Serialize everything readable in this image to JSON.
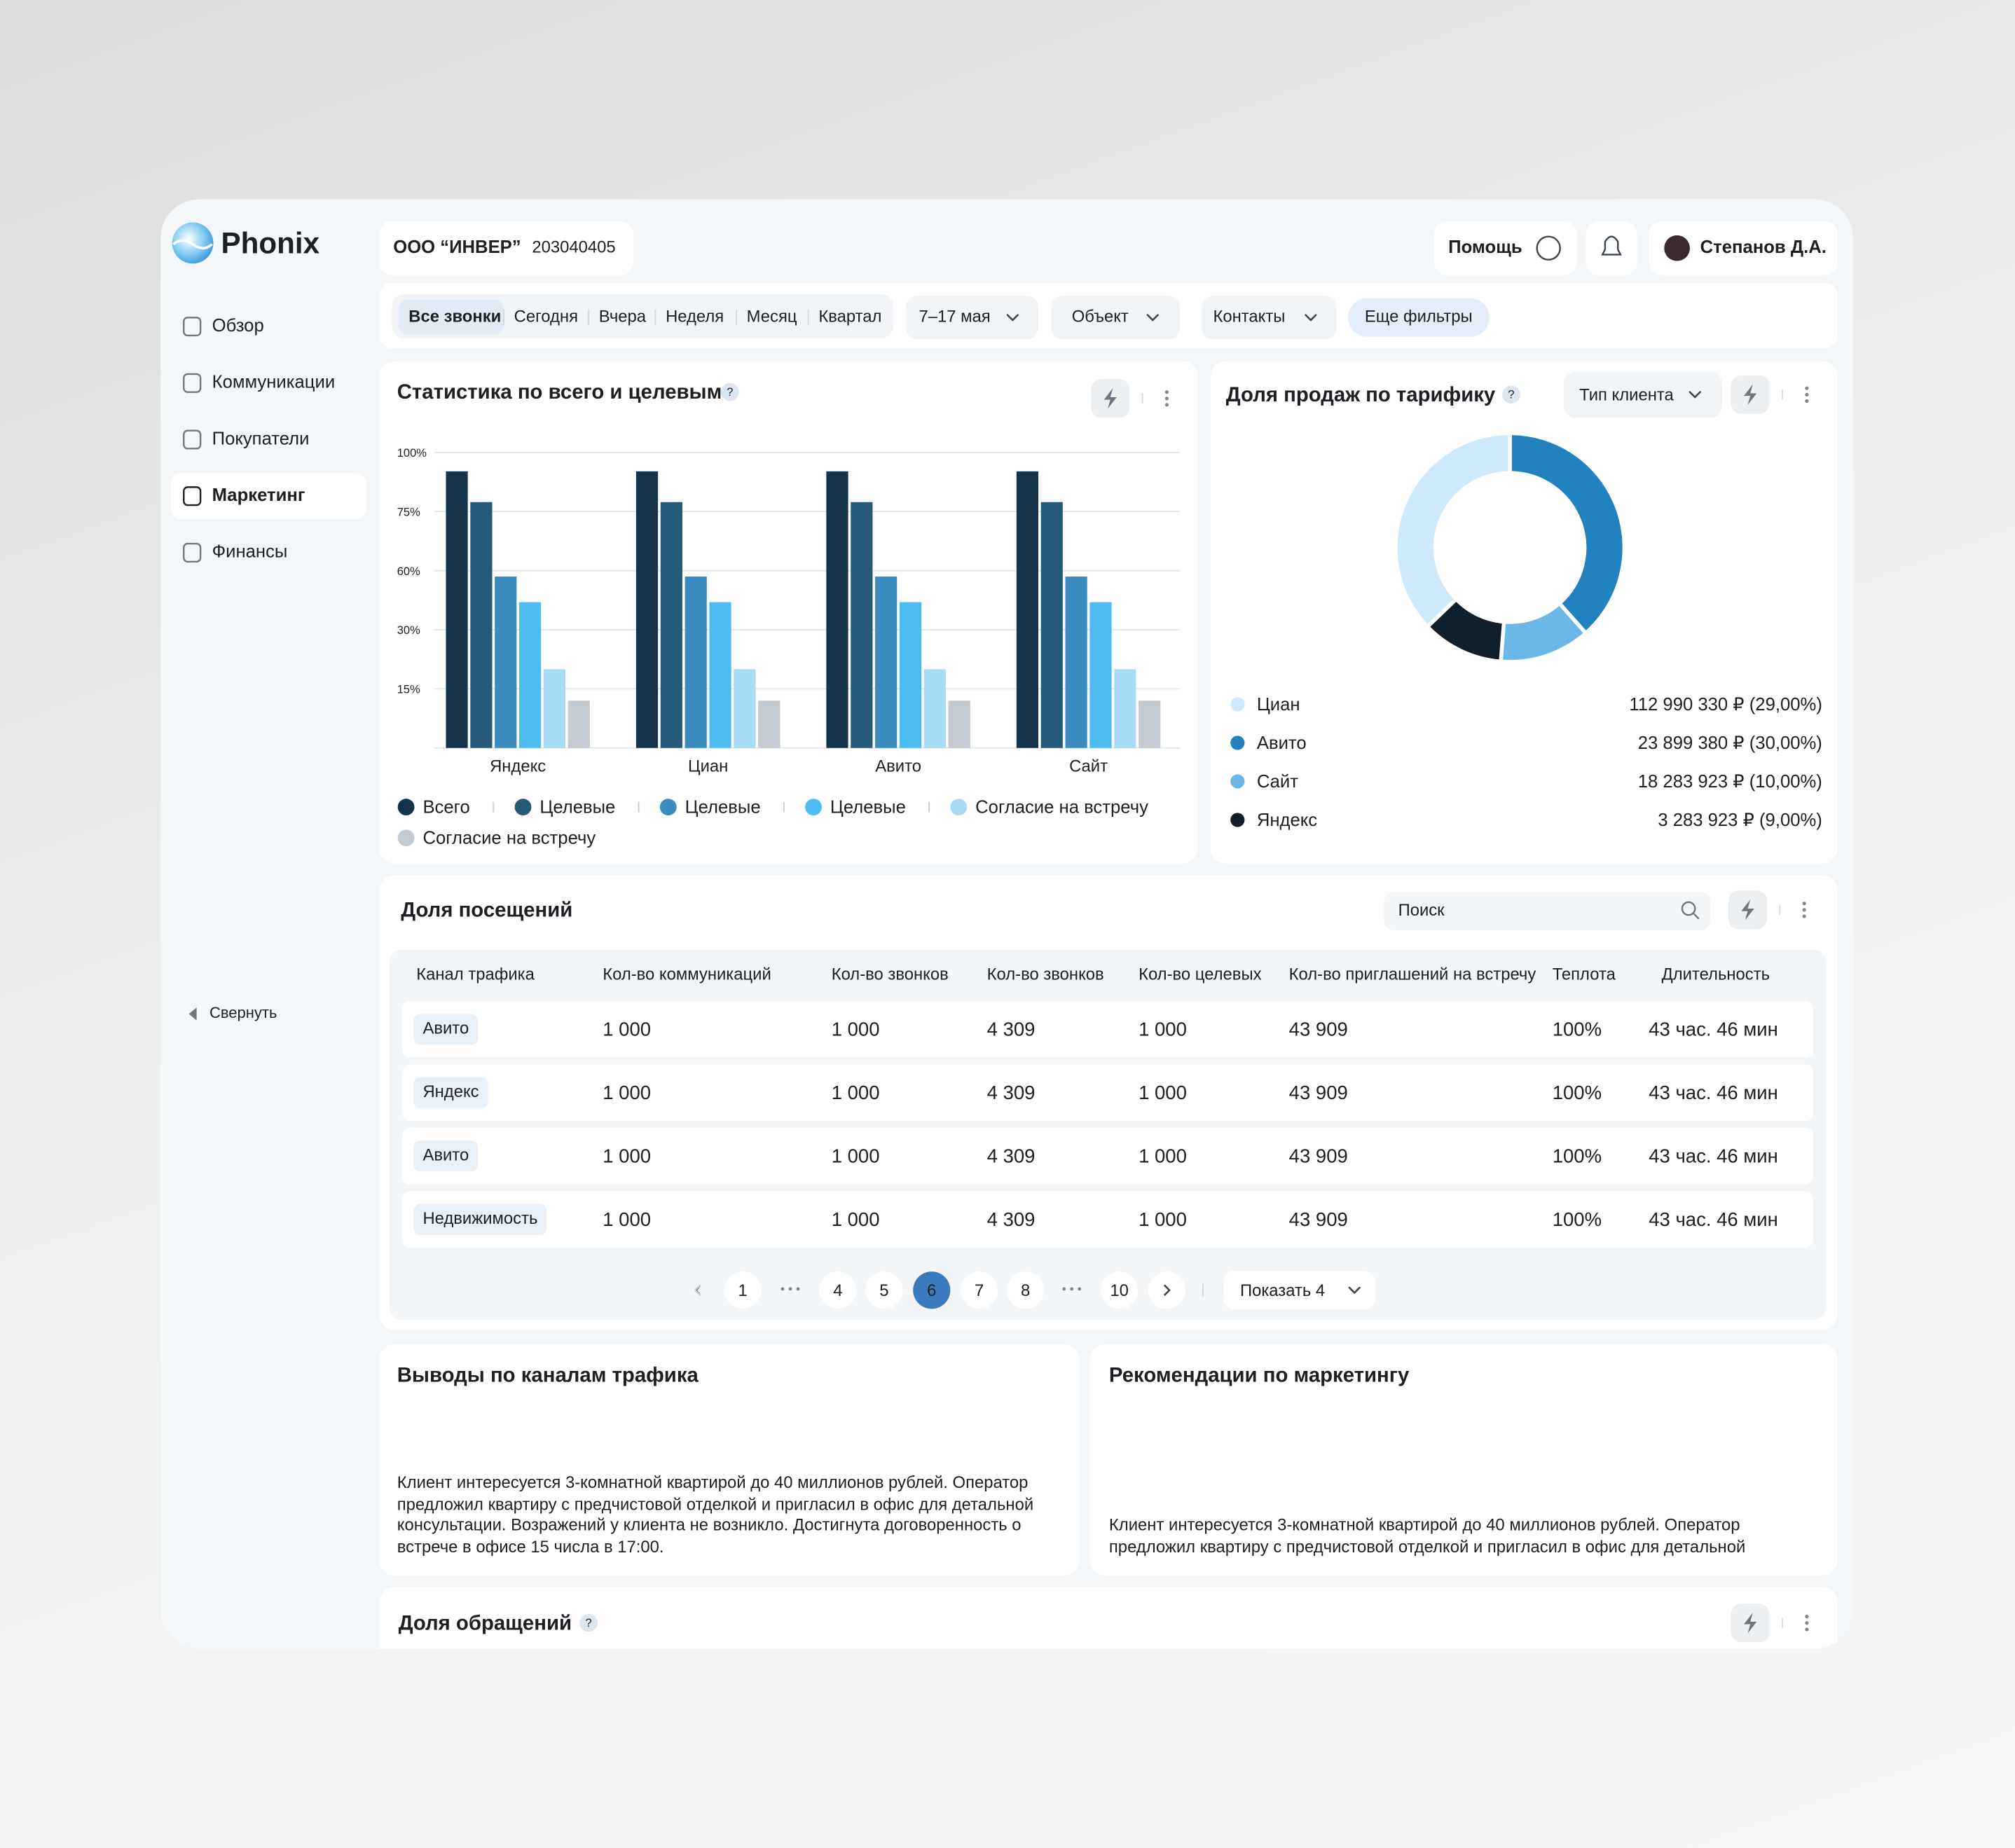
{
  "sidebar": {
    "logo": "Phonix",
    "nav": [
      "Обзор",
      "Коммуникации",
      "Покупатели",
      "Маркетинг",
      "Финансы"
    ],
    "collapse": "Свернуть"
  },
  "header": {
    "company": "ООО “ИНВЕР”",
    "inn": "203040405",
    "help": "Помощь",
    "user": "Степанов Д.А."
  },
  "filters": {
    "periods": [
      "Все звонки",
      "Сегодня",
      "Вчера",
      "Неделя",
      "Месяц",
      "Квартал"
    ],
    "dates": "7–17 мая",
    "object": "Объект",
    "contacts": "Контакты",
    "more": "Еще фильтры"
  },
  "sales_chart": {
    "type": "bar",
    "title": "Статистика по всего и целевым",
    "categories": [
      "Яндекс",
      "Циан",
      "Авито",
      "Сайт"
    ],
    "series": [
      {
        "name": "Всего",
        "color": "#15344a",
        "values": [
          92,
          92,
          92,
          92
        ]
      },
      {
        "name": "Целевые",
        "color": "#265a7a",
        "values": [
          79,
          79,
          79,
          79
        ]
      },
      {
        "name": "Целевые",
        "color": "#3a8bc0",
        "values": [
          57,
          57,
          57,
          57
        ]
      },
      {
        "name": "Целевые",
        "color": "#4cbcf0",
        "values": [
          44,
          44,
          44,
          44
        ]
      },
      {
        "name": "Согласие на встречу",
        "color": "#a8dcf5",
        "values": [
          20,
          20,
          20,
          20
        ]
      },
      {
        "name": "Согласие на встречу",
        "color": "#c3cad1",
        "values": [
          12,
          12,
          12,
          12
        ]
      }
    ],
    "ylim": [
      0,
      100
    ],
    "yticks": [
      {
        "value": 15,
        "label": "15%"
      },
      {
        "value": 30,
        "label": "30%"
      },
      {
        "value": 60,
        "label": "60%"
      },
      {
        "value": 75,
        "label": "75%"
      },
      {
        "value": 100,
        "label": "100%"
      }
    ],
    "grid": true
  },
  "share_chart": {
    "type": "pie",
    "title": "Доля продаж по тарифику",
    "filter": "Тип клиента",
    "categories": [
      "Циан",
      "Авито",
      "Сайт",
      "Яндекс"
    ],
    "values": [
      29,
      30,
      10,
      9
    ],
    "value_labels": [
      "112 990 330 ₽ (29,00%)",
      "23 899 380 ₽ (30,00%)",
      "18 283 923 ₽ (10,00%)",
      "3 283 923 ₽ (9,00%)"
    ],
    "colors": [
      "#cde9fb",
      "#2281bf",
      "#6bb8e8",
      "#0f1f2b"
    ]
  },
  "visits_table": {
    "title": "Доля посещений",
    "search_placeholder": "Поиск",
    "columns": [
      "Канал трафика",
      "Кол-во коммуникаций",
      "Кол-во звонков",
      "Кол-во звонков",
      "Кол-во целевых",
      "Кол-во приглашений на встречу",
      "Теплота",
      "Длительность"
    ],
    "rows": [
      [
        "Авито",
        "1 000",
        "1 000",
        "4 309",
        "1 000",
        "43 909",
        "100%",
        "43 час. 46 мин"
      ],
      [
        "Яндекс",
        "1 000",
        "1 000",
        "4 309",
        "1 000",
        "43 909",
        "100%",
        "43 час. 46 мин"
      ],
      [
        "Авито",
        "1 000",
        "1 000",
        "4 309",
        "1 000",
        "43 909",
        "100%",
        "43 час. 46 мин"
      ],
      [
        "Недвижимость",
        "1 000",
        "1 000",
        "4 309",
        "1 000",
        "43 909",
        "100%",
        "43 час. 46 мин"
      ]
    ],
    "pagination": {
      "pages": [
        1,
        4,
        5,
        6,
        7,
        8,
        10
      ],
      "page_size": "Показать 4"
    }
  },
  "conclusions": {
    "title": "Выводы по каналам трафика",
    "text": "Клиент интересуется 3-комнатной квартирой до 40 миллионов рублей. Оператор предложил квартиру с предчистовой отделкой и пригласил в офис для детальной консультации. Возражений у клиента не возникло. Достигнута договоренность о встрече в офисе 15 числа в 17:00."
  },
  "recommendations": {
    "title": "Рекомендации по маркетингу",
    "text": "Клиент интересуется 3-комнатной квартирой до 40 миллионов рублей. Оператор предложил квартиру с предчистовой отделкой и пригласил в офис для детальной"
  },
  "requests": {
    "title": "Доля обращений"
  }
}
